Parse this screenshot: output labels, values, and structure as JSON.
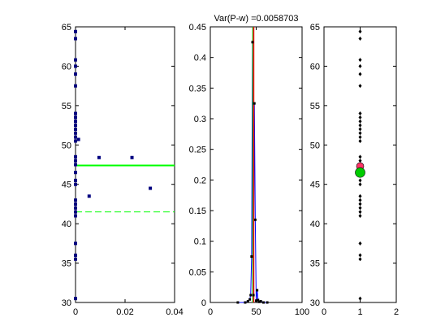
{
  "chart_data": [
    {
      "type": "scatter",
      "xlim": [
        0,
        0.04
      ],
      "ylim": [
        30,
        65
      ],
      "xticks": [
        "0",
        "0.02",
        "0.04"
      ],
      "yticks": [
        "30",
        "35",
        "40",
        "45",
        "50",
        "55",
        "60",
        "65"
      ],
      "grid": false,
      "points": [
        [
          0,
          64.4
        ],
        [
          0,
          63.5
        ],
        [
          0,
          60.8
        ],
        [
          0,
          60.0
        ],
        [
          0,
          59.0
        ],
        [
          0,
          57.5
        ],
        [
          0,
          54.0
        ],
        [
          0,
          53.5
        ],
        [
          0,
          53.0
        ],
        [
          0,
          52.5
        ],
        [
          0,
          52.0
        ],
        [
          0,
          51.5
        ],
        [
          0,
          51.0
        ],
        [
          0,
          50.5
        ],
        [
          0,
          48.5
        ],
        [
          0,
          48.0
        ],
        [
          0,
          47.5
        ],
        [
          0,
          46.5
        ],
        [
          0,
          45.5
        ],
        [
          0,
          45.0
        ],
        [
          0,
          43.0
        ],
        [
          0,
          42.5
        ],
        [
          0,
          42.0
        ],
        [
          0,
          41.5
        ],
        [
          0,
          41.0
        ],
        [
          0,
          37.5
        ],
        [
          0,
          36.0
        ],
        [
          0,
          35.5
        ],
        [
          0,
          30.5
        ],
        [
          0.0012,
          50.7
        ],
        [
          0.0055,
          43.5
        ],
        [
          0.0095,
          48.4
        ],
        [
          0.0228,
          48.4
        ],
        [
          0.0302,
          44.5
        ]
      ],
      "hlines": [
        {
          "y": 47.4,
          "style": "solid",
          "color": "#00ff00"
        },
        {
          "y": 41.5,
          "style": "dashed",
          "color": "#00ff00"
        }
      ],
      "marker_color": "#00007f"
    },
    {
      "type": "line",
      "title": "Var(P-w) =0.0058703",
      "xlim": [
        0,
        100
      ],
      "ylim": [
        0,
        0.45
      ],
      "xticks": [
        "0",
        "50",
        "100"
      ],
      "yticks": [
        "0",
        "0.05",
        "0.1",
        "0.15",
        "0.2",
        "0.25",
        "0.3",
        "0.35",
        "0.4",
        "0.45"
      ],
      "grid": false,
      "series_color": "#0000ff",
      "x": [
        30,
        38,
        41,
        43,
        44,
        45,
        46,
        47,
        48,
        49,
        50,
        51,
        52,
        53,
        55,
        58,
        62
      ],
      "y": [
        0,
        0,
        0.002,
        0.005,
        0.012,
        0.075,
        0.425,
        0.012,
        0.325,
        0.135,
        0.003,
        0.02,
        0.004,
        0.001,
        0.002,
        0,
        0
      ],
      "vlines": [
        {
          "x": 46.4,
          "color": "#00cc00"
        },
        {
          "x": 47.3,
          "color": "#ff0000"
        }
      ]
    },
    {
      "type": "scatter",
      "xlim": [
        0,
        2
      ],
      "ylim": [
        30,
        65
      ],
      "xticks": [
        "0",
        "1",
        "2"
      ],
      "yticks": [
        "30",
        "35",
        "40",
        "45",
        "50",
        "55",
        "60",
        "65"
      ],
      "grid": false,
      "points": [
        [
          1,
          64.4
        ],
        [
          1,
          63.5
        ],
        [
          1,
          60.8
        ],
        [
          1,
          60.0
        ],
        [
          1,
          59.0
        ],
        [
          1,
          57.5
        ],
        [
          1,
          54.0
        ],
        [
          1,
          53.5
        ],
        [
          1,
          53.0
        ],
        [
          1,
          52.5
        ],
        [
          1,
          52.0
        ],
        [
          1,
          51.5
        ],
        [
          1,
          51.0
        ],
        [
          1,
          50.5
        ],
        [
          1,
          48.5
        ],
        [
          1,
          48.0
        ],
        [
          1,
          46.5
        ],
        [
          1,
          45.5
        ],
        [
          1,
          45.0
        ],
        [
          1,
          43.5
        ],
        [
          1,
          43.0
        ],
        [
          1,
          42.5
        ],
        [
          1,
          42.0
        ],
        [
          1,
          41.5
        ],
        [
          1,
          41.0
        ],
        [
          1,
          37.5
        ],
        [
          1,
          36.0
        ],
        [
          1,
          35.5
        ],
        [
          1,
          30.5
        ]
      ],
      "highlights": [
        {
          "x": 1,
          "y": 47.3,
          "color": "#ff3366"
        },
        {
          "x": 1,
          "y": 46.5,
          "color": "#00cc00"
        }
      ],
      "marker_color": "#000000"
    }
  ]
}
